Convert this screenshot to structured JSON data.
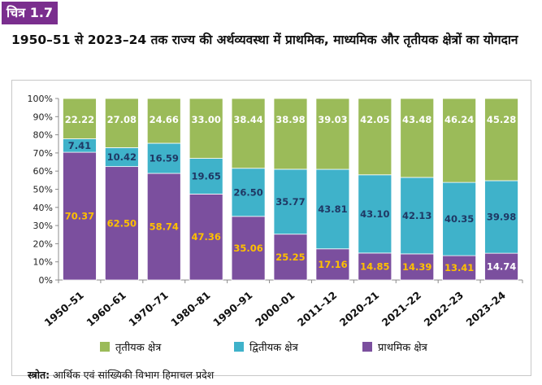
{
  "figure_label": "चित्र 1.7",
  "source": {
    "label": "स्त्रोत:",
    "text": " आर्थिक एवं सांख्यिकी विभाग हिमाचल प्रदेश"
  },
  "colors": {
    "primary": "#7b4f9e",
    "secondary": "#3fb2ca",
    "tertiary": "#9bbb59",
    "badge": "#7a2e8e",
    "label_yellow": "#ffc000",
    "label_blue": "#1f3864",
    "label_white": "#ffffff"
  },
  "chart_data": {
    "type": "bar",
    "stacked": true,
    "title": "1950–51 से 2023–24 तक राज्य की अर्थव्यवस्था में प्राथमिक, माध्यमिक और तृतीयक क्षेत्रों का योगदान",
    "xlabel": "",
    "ylabel": "",
    "ylim": [
      0,
      100
    ],
    "y_ticks": [
      "0%",
      "10%",
      "20%",
      "30%",
      "40%",
      "50%",
      "60%",
      "70%",
      "80%",
      "90%",
      "100%"
    ],
    "grid": false,
    "legend_position": "bottom",
    "categories": [
      "1950–51",
      "1960–61",
      "1970–71",
      "1980–81",
      "1990–91",
      "2000–01",
      "2011–12",
      "2020–21",
      "2021–22",
      "2022–23",
      "2023–24"
    ],
    "series": [
      {
        "name": "प्राथमिक क्षेत्र",
        "values": [
          70.37,
          62.5,
          58.74,
          47.36,
          35.06,
          25.25,
          17.16,
          14.85,
          14.39,
          13.41,
          14.74
        ],
        "labels": [
          "70.37",
          "62.50",
          "58.74",
          "47.36",
          "35.06",
          "25.25",
          "17.16",
          "14.85",
          "14.39",
          "13.41",
          "14.74"
        ]
      },
      {
        "name": "द्वितीयक क्षेत्र",
        "values": [
          7.41,
          10.42,
          16.59,
          19.65,
          26.5,
          35.77,
          43.81,
          43.1,
          42.13,
          40.35,
          39.98
        ],
        "labels": [
          "7.41",
          "10.42",
          "16.59",
          "19.65",
          "26.50",
          "35.77",
          "43.81",
          "43.10",
          "42.13",
          "40.35",
          "39.98"
        ]
      },
      {
        "name": "तृतीयक क्षेत्र",
        "values": [
          22.22,
          27.08,
          24.66,
          33.0,
          38.44,
          38.98,
          39.03,
          42.05,
          43.48,
          46.24,
          45.28
        ],
        "labels": [
          "22.22",
          "27.08",
          "24.66",
          "33.00",
          "38.44",
          "38.98",
          "39.03",
          "42.05",
          "43.48",
          "46.24",
          "45.28"
        ]
      }
    ],
    "legend_order": [
      "तृतीयक क्षेत्र",
      "द्वितीयक क्षेत्र",
      "प्राथमिक क्षेत्र"
    ]
  }
}
